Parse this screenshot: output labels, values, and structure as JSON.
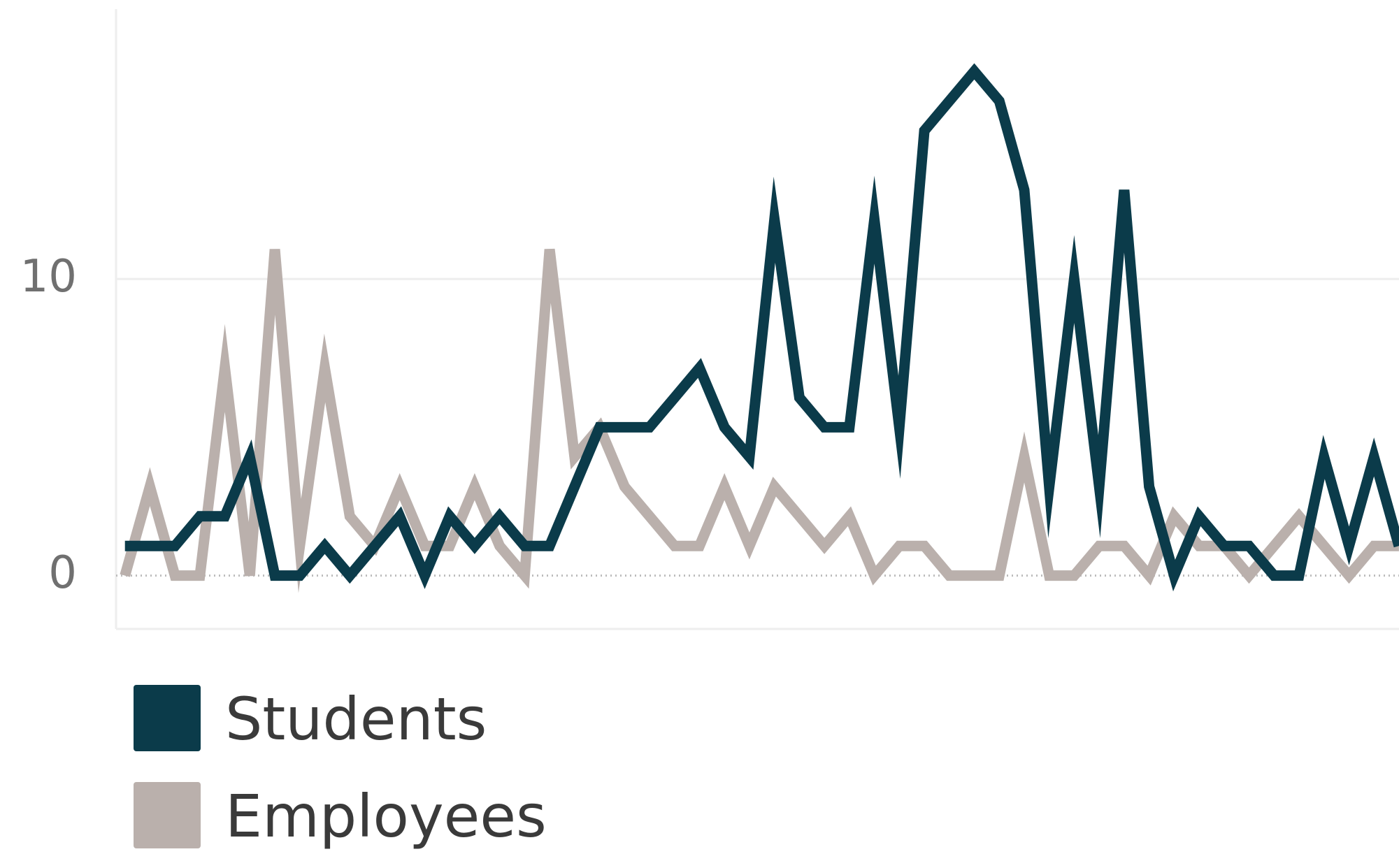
{
  "chart_data": {
    "type": "line",
    "categories": [
      null,
      null,
      null,
      null,
      null,
      null,
      null,
      null,
      null,
      null,
      null,
      null,
      null,
      null,
      null,
      null,
      null,
      null,
      null,
      null,
      null,
      null,
      null,
      null,
      null,
      null,
      null,
      null,
      null,
      null,
      null,
      null,
      null,
      null,
      null,
      null,
      null,
      null,
      null,
      null,
      null,
      null,
      null,
      null,
      null,
      null,
      null,
      null,
      null,
      null,
      null,
      null
    ],
    "series": [
      {
        "name": "Students",
        "color": "#0b3b4a",
        "values": [
          1,
          1,
          1,
          2,
          2,
          4,
          0,
          0,
          1,
          0,
          1,
          2,
          0,
          2,
          1,
          2,
          1,
          1,
          3,
          5,
          5,
          5,
          6,
          7,
          5,
          4,
          12,
          6,
          5,
          5,
          12,
          5,
          15,
          16,
          17,
          16,
          13,
          3,
          10,
          3,
          13,
          3,
          0,
          2,
          1,
          1,
          0,
          0,
          4,
          1,
          4,
          1
        ]
      },
      {
        "name": "Employees",
        "color": "#bab0ac",
        "values": [
          0,
          3,
          0,
          0,
          7,
          0,
          11,
          1,
          7,
          2,
          1,
          3,
          1,
          1,
          3,
          1,
          0,
          11,
          4,
          5,
          3,
          2,
          1,
          1,
          3,
          1,
          3,
          2,
          1,
          2,
          0,
          1,
          1,
          0,
          0,
          0,
          4,
          0,
          0,
          1,
          1,
          0,
          2,
          1,
          1,
          0,
          1,
          2,
          1,
          0,
          1,
          1
        ]
      }
    ],
    "ylim": [
      -1.8,
      19.1
    ],
    "yticks": [
      0,
      10
    ],
    "grid": true,
    "legend": "bottom-left"
  }
}
